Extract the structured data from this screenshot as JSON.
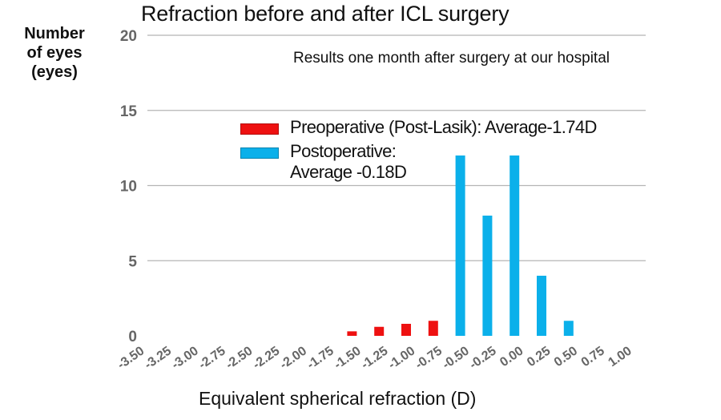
{
  "chart_data": {
    "type": "bar",
    "title": "Refraction before and after ICL surgery",
    "subtitle": "Results one month after surgery at our hospital",
    "ylabel_lines": [
      "Number",
      "of eyes",
      "(eyes)"
    ],
    "xlabel": "Equivalent spherical refraction (D)",
    "ylim": [
      0,
      20
    ],
    "yticks": [
      "0",
      "5",
      "10",
      "15",
      "20"
    ],
    "grid": true,
    "categories": [
      "-3.50",
      "-3.25",
      "-3.00",
      "-2.75",
      "-2.50",
      "-2.25",
      "-2.00",
      "-1.75",
      "-1.50",
      "-1.25",
      "-1.00",
      "-0.75",
      "-0.50",
      "-0.25",
      "0.00",
      "0.25",
      "0.50",
      "0.75",
      "1.00"
    ],
    "series": [
      {
        "name": "Preoperative (Post-Lasik): Average-1.74D",
        "color": "#ee1111",
        "values": [
          0,
          0,
          0,
          0,
          0,
          0,
          0,
          0,
          0.3,
          0.6,
          0.8,
          1.0,
          0,
          0,
          0,
          0,
          0,
          0,
          0
        ]
      },
      {
        "name_line1": "Postoperative:",
        "name_line2": "Average -0.18D",
        "color": "#0bb0ea",
        "values": [
          0,
          0,
          0,
          0,
          0,
          0,
          0,
          0,
          0,
          0,
          0,
          0,
          12,
          8,
          12,
          4,
          1,
          0,
          0
        ]
      }
    ],
    "legend_position": "upper-center"
  }
}
